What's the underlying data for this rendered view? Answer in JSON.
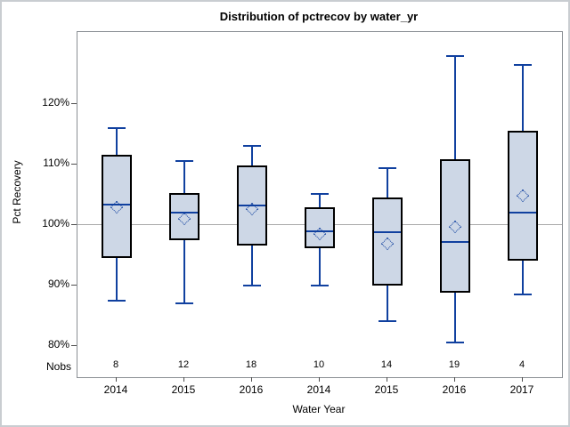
{
  "chart_data": {
    "type": "boxplot",
    "title": "Distribution of pctrecov by water_yr",
    "xlabel": "Water Year",
    "ylabel": "Pct Recovery",
    "ylim": [
      74.9,
      131.9
    ],
    "yticks": [
      80,
      90,
      100,
      110,
      120
    ],
    "ytick_suffix": "%",
    "grid": false,
    "legend": "none",
    "reference_line_y": 100,
    "nobs_row_label": "Nobs",
    "categories": [
      "2014",
      "2015",
      "2016",
      "2014",
      "2015",
      "2016",
      "2017"
    ],
    "nobs": [
      8,
      12,
      18,
      10,
      14,
      19,
      4
    ],
    "boxes": [
      {
        "category": "2014",
        "nobs": 8,
        "whisker_low": 87.5,
        "q1": 94.6,
        "median": 103.4,
        "mean": 102.9,
        "q3": 111.6,
        "whisker_high": 116.0
      },
      {
        "category": "2015",
        "nobs": 12,
        "whisker_low": 87.1,
        "q1": 97.5,
        "median": 102.1,
        "mean": 101.0,
        "q3": 105.3,
        "whisker_high": 110.6
      },
      {
        "category": "2016",
        "nobs": 18,
        "whisker_low": 90.0,
        "q1": 96.6,
        "median": 103.2,
        "mean": 102.6,
        "q3": 109.9,
        "whisker_high": 113.1
      },
      {
        "category": "2014",
        "nobs": 10,
        "whisker_low": 90.1,
        "q1": 96.2,
        "median": 99.0,
        "mean": 98.5,
        "q3": 102.9,
        "whisker_high": 105.1
      },
      {
        "category": "2015",
        "nobs": 14,
        "whisker_low": 84.1,
        "q1": 90.0,
        "median": 98.8,
        "mean": 96.9,
        "q3": 104.6,
        "whisker_high": 109.4
      },
      {
        "category": "2016",
        "nobs": 19,
        "whisker_low": 80.6,
        "q1": 88.8,
        "median": 97.2,
        "mean": 99.7,
        "q3": 110.9,
        "whisker_high": 127.9
      },
      {
        "category": "2017",
        "nobs": 4,
        "whisker_low": 88.5,
        "q1": 94.1,
        "median": 102.1,
        "mean": 104.9,
        "q3": 115.6,
        "whisker_high": 126.5
      }
    ],
    "colors": {
      "box_fill": "#cdd7e6",
      "box_border": "#000000",
      "whisker": "#10409f",
      "median": "#10409f",
      "mean_marker": "#10409f",
      "reference_line": "#a9a9a9",
      "plot_frame": "#8a8f94",
      "tick": "#4d4d4d",
      "text": "#000000",
      "figure_border": "#c9cdd1"
    }
  }
}
